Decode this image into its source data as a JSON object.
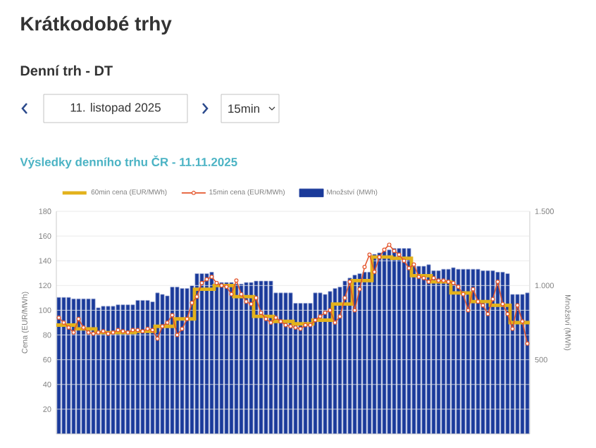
{
  "chart_data": {
    "type": "bar",
    "title": "Výsledky denního trhu ČR - 11.11.2025",
    "annotations": [
      "Krátkodobé trhy",
      "Denní trh - DT",
      "11. listopad 2025",
      "15min"
    ],
    "ylabel": "Cena (EUR/MWh)",
    "y2label": "Množství (MWh)",
    "categories": [
      null,
      null,
      null,
      null,
      null,
      null,
      null,
      null,
      null,
      null,
      null,
      null,
      null,
      null,
      null,
      null,
      null,
      null,
      null,
      null,
      null,
      null,
      null,
      null,
      null,
      null,
      null,
      null,
      null,
      null,
      null,
      null,
      null,
      null,
      null,
      null,
      null,
      null,
      null,
      null,
      null,
      null,
      null,
      null,
      null,
      null,
      null,
      null,
      null,
      null,
      null,
      null,
      null,
      null,
      null,
      null,
      null,
      null,
      null,
      null,
      null,
      null,
      null,
      null,
      null,
      null,
      null,
      null,
      null,
      null,
      null,
      null,
      null,
      null,
      null,
      null,
      null,
      null,
      null,
      null,
      null,
      null,
      null,
      null,
      null,
      null,
      null,
      null,
      null,
      null,
      null,
      null,
      null,
      null,
      null,
      null
    ],
    "series": [
      {
        "name": "60min cena (EUR/MWh)",
        "type": "step",
        "color": "#e3b21c",
        "values": [
          88,
          88,
          88,
          88,
          85,
          85,
          85,
          85,
          82,
          82,
          82,
          82,
          82,
          82,
          82,
          82,
          83,
          83,
          83,
          83,
          87,
          87,
          87,
          87,
          93,
          93,
          93,
          93,
          117,
          117,
          117,
          117,
          120,
          120,
          120,
          120,
          111,
          111,
          111,
          111,
          95,
          95,
          95,
          95,
          91,
          91,
          91,
          91,
          89,
          89,
          89,
          89,
          92,
          92,
          92,
          92,
          105,
          105,
          105,
          105,
          124,
          124,
          124,
          124,
          143,
          143,
          143,
          143,
          142,
          142,
          142,
          142,
          128,
          128,
          128,
          128,
          123,
          123,
          123,
          123,
          114,
          114,
          114,
          114,
          107,
          107,
          107,
          107,
          104,
          104,
          104,
          104,
          90,
          90,
          90,
          90
        ]
      },
      {
        "name": "15min cena (EUR/MWh)",
        "type": "line",
        "color": "#e4572e",
        "marker": "circle",
        "values": [
          94,
          90,
          86,
          82,
          93,
          86,
          82,
          81,
          82,
          83,
          81,
          82,
          84,
          83,
          82,
          84,
          84,
          83,
          85,
          84,
          77,
          87,
          90,
          96,
          80,
          85,
          93,
          106,
          111,
          122,
          125,
          127,
          122,
          120,
          119,
          113,
          124,
          113,
          107,
          105,
          110,
          98,
          93,
          90,
          94,
          91,
          88,
          87,
          86,
          85,
          88,
          88,
          92,
          95,
          98,
          100,
          90,
          95,
          110,
          123,
          100,
          117,
          135,
          145,
          131,
          143,
          149,
          153,
          148,
          145,
          140,
          134,
          137,
          127,
          126,
          123,
          126,
          124,
          124,
          123,
          122,
          119,
          113,
          100,
          117,
          107,
          104,
          97,
          109,
          123,
          105,
          97,
          85,
          104,
          91,
          73
        ]
      },
      {
        "name": "Množství (MWh)",
        "axis": "y2",
        "color": "#1a3a9a",
        "values": [
          920,
          920,
          920,
          910,
          910,
          910,
          910,
          910,
          850,
          860,
          860,
          860,
          870,
          870,
          870,
          870,
          900,
          900,
          900,
          890,
          950,
          940,
          930,
          990,
          990,
          980,
          980,
          1000,
          1080,
          1080,
          1080,
          1090,
          1020,
          1020,
          1020,
          1020,
          1010,
          1010,
          1020,
          1020,
          1030,
          1030,
          1030,
          1030,
          950,
          950,
          950,
          950,
          880,
          880,
          880,
          880,
          950,
          950,
          940,
          960,
          980,
          990,
          1030,
          1050,
          1070,
          1080,
          1090,
          1090,
          1210,
          1220,
          1230,
          1240,
          1250,
          1250,
          1250,
          1250,
          1130,
          1130,
          1130,
          1140,
          1100,
          1100,
          1110,
          1110,
          1120,
          1110,
          1110,
          1110,
          1110,
          1110,
          1100,
          1100,
          1100,
          1090,
          1090,
          1080,
          940,
          940,
          940,
          950
        ]
      }
    ],
    "ylim": [
      0,
      180
    ],
    "yticks": [
      20,
      40,
      60,
      80,
      100,
      120,
      140,
      160,
      180
    ],
    "y2lim": [
      0,
      1500
    ],
    "y2ticks": [
      500,
      {
        "value": 1000,
        "label": "1.000"
      },
      {
        "value": 1500,
        "label": "1.500"
      }
    ],
    "grid": "y",
    "legend": "top",
    "tick_labels": "y"
  }
}
